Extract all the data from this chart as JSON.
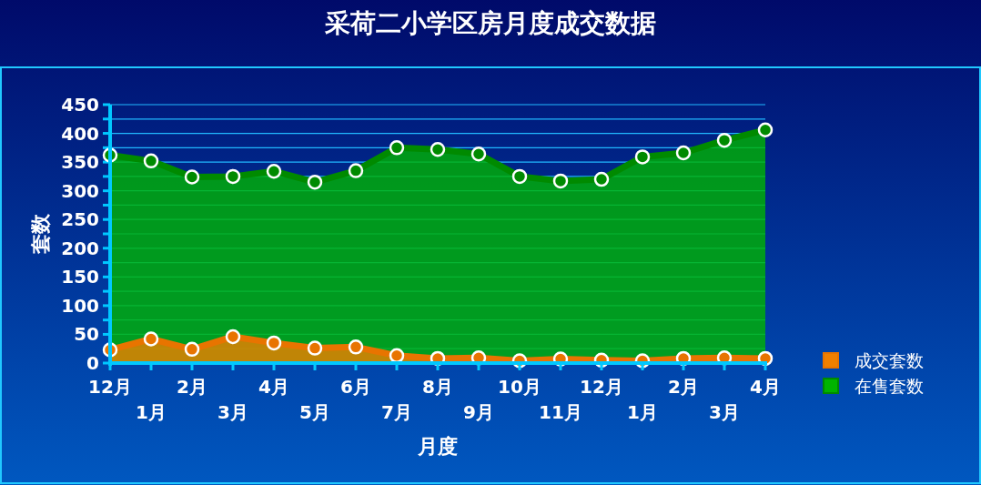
{
  "chart_data": {
    "type": "area",
    "title": "采荷二小学区房月度成交数据",
    "xlabel": "月度",
    "ylabel": "套数",
    "categories": [
      "12月",
      "1月",
      "2月",
      "3月",
      "4月",
      "5月",
      "6月",
      "7月",
      "8月",
      "9月",
      "10月",
      "11月",
      "12月",
      "1月",
      "2月",
      "3月",
      "4月"
    ],
    "series": [
      {
        "name": "在售套数",
        "color": "#00b400",
        "values": [
          362,
          352,
          324,
          325,
          334,
          315,
          335,
          375,
          372,
          364,
          325,
          317,
          320,
          359,
          366,
          388,
          406
        ]
      },
      {
        "name": "成交套数",
        "color": "#f08000",
        "values": [
          23,
          42,
          24,
          46,
          35,
          26,
          28,
          13,
          8,
          9,
          4,
          7,
          5,
          4,
          8,
          9,
          8
        ]
      }
    ],
    "ylim": [
      0,
      450
    ],
    "yticks": [
      0,
      {
        "value": 25,
        "label": null
      },
      50,
      {
        "value": 75,
        "label": null
      },
      100,
      {
        "value": 125,
        "label": null
      },
      150,
      {
        "value": 175,
        "label": null
      },
      200,
      {
        "value": 225,
        "label": null
      },
      250,
      {
        "value": 275,
        "label": null
      },
      300,
      {
        "value": 325,
        "label": null
      },
      350,
      {
        "value": 375,
        "label": null
      },
      400,
      {
        "value": 425,
        "label": null
      },
      450
    ],
    "grid": "y",
    "legend": "right",
    "marker": "circle"
  }
}
